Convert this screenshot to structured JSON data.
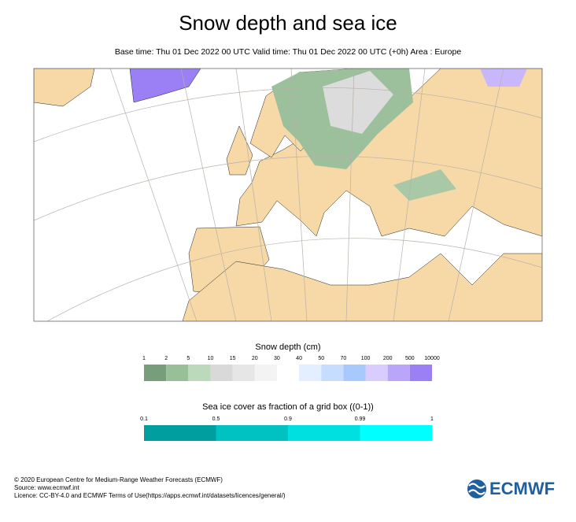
{
  "header": {
    "title": "Snow depth and sea ice",
    "subtitle": "Base time: Thu 01 Dec 2022 00 UTC Valid time: Thu 01 Dec 2022 00 UTC (+0h) Area : Europe"
  },
  "legend": {
    "snow": {
      "title": "Snow depth (cm)",
      "ticks": [
        1,
        2,
        5,
        10,
        15,
        20,
        30,
        40,
        50,
        70,
        100,
        200,
        500,
        10000
      ],
      "colors": [
        "#789d7b",
        "#98bf98",
        "#bcd9bc",
        "#d9d9d9",
        "#e6e6e6",
        "#f3f3f3",
        "#ffffff",
        "#e3efff",
        "#c6ddff",
        "#a7c9fc",
        "#d9ccff",
        "#b9a6fb",
        "#9a7ff5"
      ]
    },
    "ice": {
      "title": "Sea ice cover as fraction of a grid box ((0-1))",
      "ticks": [
        0.1,
        0.5,
        0.9,
        0.99,
        1
      ],
      "colors": [
        "#009e9e",
        "#00c2c2",
        "#00e0e0",
        "#00ffff"
      ]
    }
  },
  "footer": {
    "lines": [
      "© 2020 European Centre for Medium-Range Weather Forecasts (ECMWF)",
      "Source: www.ecmwf.int",
      "Licence: CC-BY-4.0 and ECMWF Terms of Use(https://apps.ecmwf.int/datasets/licences/general/)"
    ],
    "logo": "ECMWF"
  }
}
